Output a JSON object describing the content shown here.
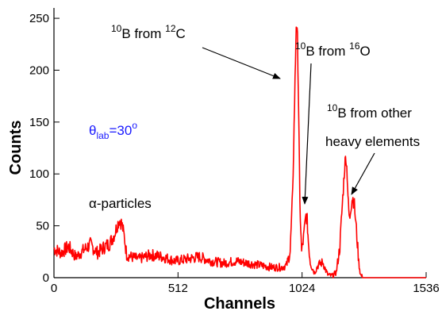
{
  "chart_data": {
    "type": "line",
    "xlabel": "Channels",
    "ylabel": "Counts",
    "xlim": [
      0,
      1536
    ],
    "ylim": [
      0,
      260
    ],
    "x_ticks": [
      0,
      512,
      1024,
      1536
    ],
    "y_ticks": [
      0,
      50,
      100,
      150,
      200,
      250
    ],
    "grid": false,
    "series": [
      {
        "color": "#ff0000",
        "x": [
          0,
          30,
          60,
          90,
          120,
          150,
          180,
          210,
          230,
          250,
          260,
          270,
          280,
          290,
          300,
          320,
          350,
          400,
          450,
          500,
          550,
          600,
          650,
          700,
          750,
          800,
          850,
          900,
          940,
          960,
          975,
          985,
          995,
          1000,
          1005,
          1010,
          1015,
          1022,
          1030,
          1040,
          1045,
          1050,
          1058,
          1065,
          1075,
          1090,
          1110,
          1120,
          1130,
          1140,
          1150,
          1165,
          1180,
          1190,
          1200,
          1205,
          1210,
          1215,
          1220,
          1225,
          1232,
          1240,
          1250,
          1258,
          1265,
          1275,
          1300,
          1400,
          1536
        ],
        "y": [
          28,
          24,
          30,
          20,
          26,
          32,
          24,
          30,
          33,
          42,
          50,
          56,
          52,
          40,
          22,
          20,
          18,
          22,
          20,
          16,
          18,
          20,
          16,
          14,
          16,
          14,
          12,
          10,
          10,
          12,
          25,
          80,
          190,
          245,
          230,
          160,
          70,
          25,
          38,
          60,
          55,
          35,
          15,
          10,
          5,
          12,
          15,
          8,
          3,
          2,
          2,
          5,
          30,
          70,
          108,
          118,
          100,
          70,
          55,
          68,
          78,
          70,
          40,
          15,
          3,
          0,
          0,
          0,
          0
        ]
      }
    ],
    "annotations": {
      "c12": {
        "isotope_mass": "10",
        "isotope_elem": "B from ",
        "source_mass": "12",
        "source_elem": "C"
      },
      "o16": {
        "isotope_mass": "10",
        "isotope_elem": "B from ",
        "source_mass": "16",
        "source_elem": "O"
      },
      "heavy": {
        "isotope_mass": "10",
        "isotope_elem": "B from other",
        "line2": "heavy elements"
      },
      "alpha": "α-particles",
      "theta": {
        "symbol": "θ",
        "subscript": "lab",
        "value": "=30",
        "superscript": "o"
      }
    }
  }
}
